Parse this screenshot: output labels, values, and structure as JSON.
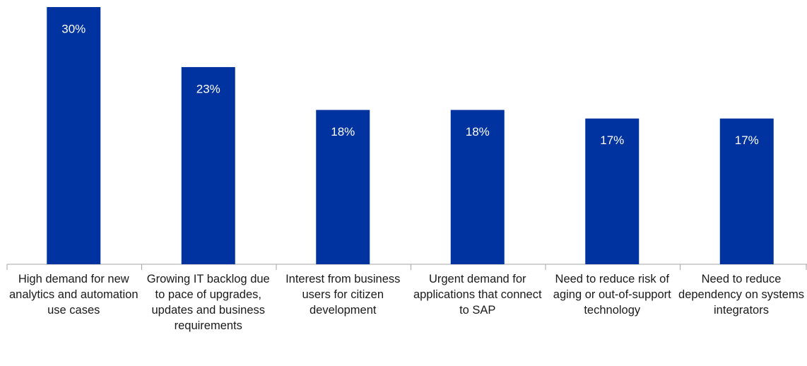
{
  "chart_data": {
    "type": "bar",
    "categories": [
      "High demand for new analytics and automation use cases",
      "Growing IT backlog due to pace of upgrades, updates and business requirements",
      "Interest from business users for citizen development",
      "Urgent demand for applications that connect to SAP",
      "Need to reduce risk of aging or out-of-support technology",
      "Need to reduce dependency on systems integrators"
    ],
    "values": [
      30,
      23,
      18,
      18,
      17,
      17
    ],
    "value_labels": [
      "30%",
      "23%",
      "18%",
      "18%",
      "17%",
      "17%"
    ],
    "color": "#0033a0"
  }
}
